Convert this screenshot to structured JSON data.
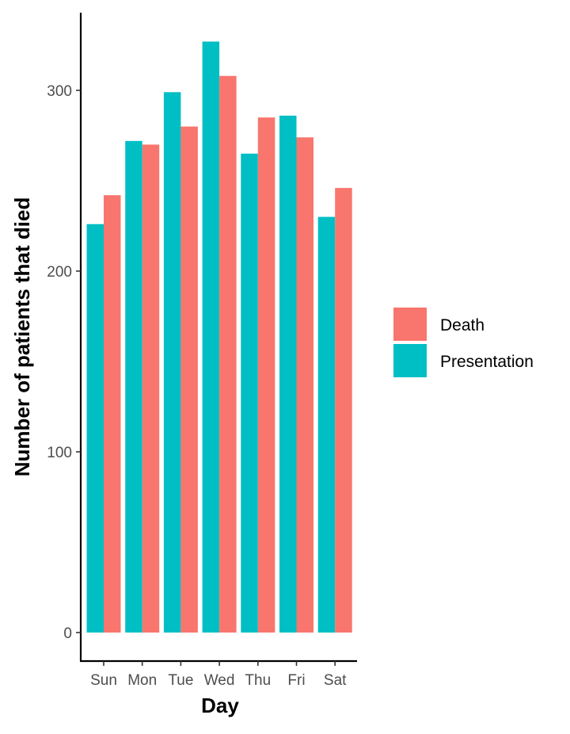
{
  "chart_data": {
    "type": "bar",
    "xlabel": "Day",
    "ylabel": "Number of patients that died",
    "categories": [
      "Sun",
      "Mon",
      "Tue",
      "Wed",
      "Thu",
      "Fri",
      "Sat"
    ],
    "series": [
      {
        "name": "Presentation",
        "color": "#00BFC4",
        "values": [
          226,
          272,
          299,
          327,
          265,
          286,
          230
        ]
      },
      {
        "name": "Death",
        "color": "#F8766D",
        "values": [
          242,
          270,
          280,
          308,
          285,
          274,
          246
        ]
      }
    ],
    "legend_order": [
      "Death",
      "Presentation"
    ],
    "yticks": [
      0,
      100,
      200,
      300
    ],
    "ylim": [
      0,
      344
    ],
    "grid": false,
    "legend_position": "right"
  }
}
